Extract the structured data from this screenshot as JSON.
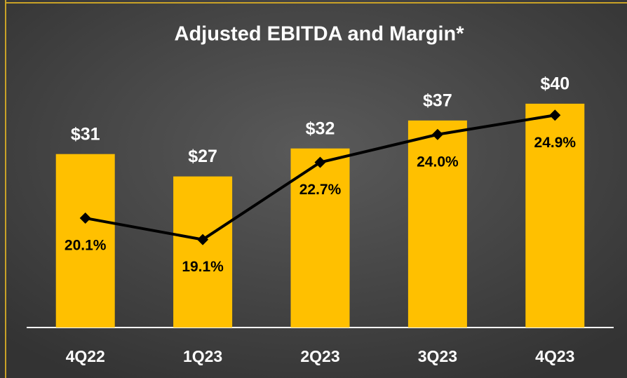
{
  "chart_data": {
    "type": "bar",
    "title": "Adjusted EBITDA and Margin*",
    "categories": [
      "4Q22",
      "1Q23",
      "2Q23",
      "3Q23",
      "4Q23"
    ],
    "series": [
      {
        "type": "bar",
        "color": "#ffc000",
        "values": [
          31,
          27,
          32,
          37,
          40
        ],
        "value_labels": [
          "$31",
          "$27",
          "$32",
          "$37",
          "$40"
        ]
      },
      {
        "type": "line",
        "axis": "y2",
        "color": "#000000",
        "values": [
          20.1,
          19.1,
          22.7,
          24.0,
          24.9
        ],
        "value_labels": [
          "20.1%",
          "19.1%",
          "22.7%",
          "24.0%",
          "24.9%"
        ]
      }
    ],
    "ylim": [
      0,
      46
    ],
    "y2lim": [
      15,
      27
    ]
  }
}
